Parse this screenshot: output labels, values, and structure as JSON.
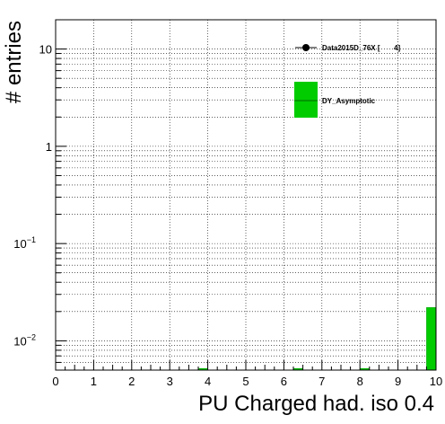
{
  "chart_data": {
    "type": "bar",
    "xlabel": "PU Charged had. iso 0.4",
    "ylabel": "# entries",
    "x_range": [
      0,
      10
    ],
    "y_range": [
      0.005,
      20
    ],
    "y_scale": "log",
    "grid": true,
    "x_ticks": [
      "0",
      "1",
      "2",
      "3",
      "4",
      "5",
      "6",
      "7",
      "8",
      "9",
      "10"
    ],
    "y_ticks": [
      {
        "value": 0.01,
        "base": "10",
        "exp": "−2"
      },
      {
        "value": 0.1,
        "base": "10",
        "exp": "−1"
      },
      {
        "value": 1,
        "base": "1",
        "exp": ""
      },
      {
        "value": 10,
        "base": "10",
        "exp": ""
      }
    ],
    "bin_width": 0.25,
    "series": [
      {
        "name": "DY_Asymptotic",
        "style": "histogram",
        "color": "#00cc00",
        "bins": [
          {
            "x": 3.875,
            "y": 0.0052
          },
          {
            "x": 6.375,
            "y": 0.0052
          },
          {
            "x": 8.125,
            "y": 0.0052
          },
          {
            "x": 9.875,
            "y": 0.022
          }
        ]
      },
      {
        "name": "Data2015D_76X [       4]",
        "style": "markers",
        "color": "#000000",
        "bins": []
      }
    ],
    "legend": {
      "placement": "top-right",
      "entries": [
        "Data2015D_76X [       4]",
        "DY_Asymptotic"
      ]
    }
  }
}
